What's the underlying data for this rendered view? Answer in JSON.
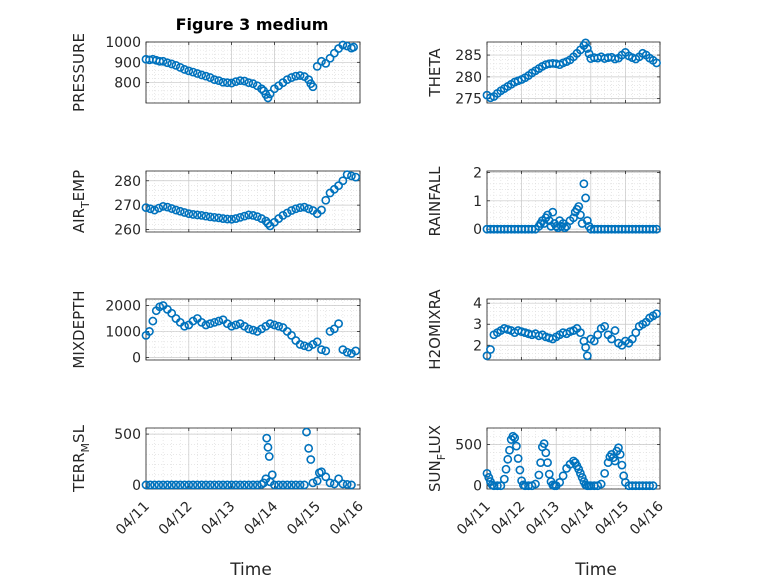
{
  "figure_title": "Figure 3 medium",
  "marker_color": "#0072bd",
  "chart_data": [
    {
      "type": "scatter",
      "ylabel": "PRESSURE",
      "xlim": [
        0,
        5
      ],
      "ylim": [
        700,
        1000
      ],
      "yticks": [
        800,
        900,
        1000
      ],
      "ytick_labels": [
        "800",
        "900",
        "1000"
      ],
      "x": [
        0,
        0.08,
        0.16,
        0.24,
        0.32,
        0.4,
        0.5,
        0.6,
        0.7,
        0.8,
        0.9,
        1.0,
        1.1,
        1.2,
        1.3,
        1.4,
        1.5,
        1.6,
        1.7,
        1.8,
        1.9,
        2.0,
        2.1,
        2.2,
        2.3,
        2.4,
        2.5,
        2.6,
        2.7,
        2.75,
        2.8,
        2.85,
        2.9,
        3.0,
        3.1,
        3.2,
        3.3,
        3.4,
        3.5,
        3.6,
        3.7,
        3.8,
        3.85,
        3.9,
        4.0,
        4.1,
        4.2,
        4.3,
        4.4,
        4.5,
        4.6,
        4.7,
        4.8,
        4.85
      ],
      "y": [
        915,
        912,
        915,
        910,
        905,
        905,
        898,
        892,
        885,
        875,
        865,
        858,
        852,
        845,
        838,
        832,
        825,
        815,
        810,
        802,
        800,
        798,
        805,
        810,
        808,
        800,
        795,
        785,
        770,
        760,
        742,
        725,
        745,
        770,
        785,
        800,
        815,
        825,
        832,
        835,
        830,
        815,
        795,
        780,
        880,
        905,
        895,
        920,
        945,
        968,
        985,
        980,
        970,
        975
      ]
    },
    {
      "type": "scatter",
      "ylabel": "THETA",
      "xlim": [
        0,
        5
      ],
      "ylim": [
        274,
        288
      ],
      "yticks": [
        275,
        280,
        285
      ],
      "ytick_labels": [
        "275",
        "280",
        "285"
      ],
      "x": [
        0,
        0.1,
        0.2,
        0.3,
        0.4,
        0.5,
        0.6,
        0.7,
        0.8,
        0.9,
        1.0,
        1.1,
        1.2,
        1.3,
        1.4,
        1.5,
        1.6,
        1.7,
        1.8,
        1.9,
        2.0,
        2.1,
        2.2,
        2.3,
        2.4,
        2.5,
        2.6,
        2.7,
        2.8,
        2.85,
        2.9,
        2.95,
        3.0,
        3.1,
        3.2,
        3.3,
        3.4,
        3.5,
        3.6,
        3.7,
        3.8,
        3.9,
        4.0,
        4.1,
        4.2,
        4.3,
        4.4,
        4.5,
        4.6,
        4.7,
        4.8,
        4.9
      ],
      "y": [
        275.8,
        275.2,
        275.5,
        276.2,
        276.8,
        277.3,
        277.8,
        278.3,
        278.8,
        279.1,
        279.4,
        279.8,
        280.3,
        280.9,
        281.4,
        281.9,
        282.4,
        282.8,
        283.0,
        283.1,
        283.0,
        282.8,
        283.2,
        283.5,
        283.9,
        284.6,
        285.4,
        286.2,
        287.2,
        287.8,
        286.5,
        285.3,
        284.2,
        284.4,
        284.3,
        284.6,
        284.2,
        284.4,
        284.5,
        284.1,
        284.3,
        285.0,
        285.6,
        284.8,
        284.4,
        284.1,
        284.6,
        285.4,
        285.0,
        284.3,
        283.8,
        283.2
      ]
    },
    {
      "type": "scatter",
      "ylabel": "AIR_TEMP",
      "xlim": [
        0,
        5
      ],
      "ylim": [
        259,
        284
      ],
      "yticks": [
        260,
        270,
        280
      ],
      "ytick_labels": [
        "260",
        "270",
        "280"
      ],
      "x": [
        0,
        0.1,
        0.2,
        0.3,
        0.4,
        0.5,
        0.6,
        0.7,
        0.8,
        0.9,
        1.0,
        1.1,
        1.2,
        1.3,
        1.4,
        1.5,
        1.6,
        1.7,
        1.8,
        1.9,
        2.0,
        2.1,
        2.2,
        2.3,
        2.4,
        2.5,
        2.6,
        2.7,
        2.8,
        2.85,
        2.9,
        3.0,
        3.1,
        3.2,
        3.3,
        3.4,
        3.5,
        3.6,
        3.7,
        3.8,
        3.9,
        4.0,
        4.1,
        4.2,
        4.3,
        4.4,
        4.5,
        4.6,
        4.7,
        4.8,
        4.9
      ],
      "y": [
        269,
        268.5,
        268,
        268.8,
        269.5,
        269.2,
        268.6,
        268,
        267.5,
        267,
        266.5,
        266.2,
        266,
        265.8,
        265.5,
        265.2,
        265,
        264.8,
        264.5,
        264.3,
        264.2,
        264.5,
        265,
        265.5,
        266,
        265.8,
        265.3,
        264.5,
        263.5,
        262.5,
        261.5,
        263,
        264.5,
        265.8,
        266.8,
        267.8,
        268.5,
        269,
        269.2,
        268.5,
        267.8,
        266.5,
        268,
        272,
        275,
        276.5,
        278,
        280,
        282.5,
        282,
        281.5
      ]
    },
    {
      "type": "scatter",
      "ylabel": "MIXDEPTH",
      "xlim": [
        0,
        5
      ],
      "ylim": [
        -100,
        2250
      ],
      "yticks": [
        0,
        1000,
        2000
      ],
      "ytick_labels": [
        "0",
        "1000",
        "2000"
      ],
      "x": [
        0,
        0.08,
        0.16,
        0.24,
        0.32,
        0.4,
        0.5,
        0.6,
        0.7,
        0.8,
        0.9,
        1.0,
        1.1,
        1.2,
        1.3,
        1.4,
        1.5,
        1.6,
        1.7,
        1.8,
        1.9,
        2.0,
        2.1,
        2.2,
        2.3,
        2.4,
        2.5,
        2.6,
        2.7,
        2.8,
        2.9,
        3.0,
        3.1,
        3.2,
        3.3,
        3.4,
        3.5,
        3.6,
        3.7,
        3.8,
        3.9,
        4.0,
        4.1,
        4.2,
        4.3,
        4.4,
        4.5,
        4.6,
        4.7,
        4.8,
        4.9
      ],
      "y": [
        850,
        1000,
        1400,
        1800,
        1950,
        2000,
        1850,
        1700,
        1500,
        1350,
        1200,
        1250,
        1400,
        1500,
        1350,
        1250,
        1300,
        1350,
        1400,
        1450,
        1300,
        1200,
        1250,
        1300,
        1200,
        1100,
        1050,
        1000,
        1100,
        1200,
        1300,
        1250,
        1200,
        1150,
        1000,
        850,
        650,
        500,
        450,
        400,
        500,
        600,
        300,
        250,
        1000,
        1100,
        1300,
        300,
        200,
        150,
        250
      ]
    },
    {
      "type": "scatter",
      "ylabel": "H2OMIXRA",
      "xlim": [
        0,
        5
      ],
      "ylim": [
        1.3,
        4.2
      ],
      "yticks": [
        2,
        3,
        4
      ],
      "ytick_labels": [
        "2",
        "3",
        "4"
      ],
      "x": [
        0,
        0.1,
        0.2,
        0.3,
        0.4,
        0.5,
        0.6,
        0.7,
        0.8,
        0.9,
        1.0,
        1.1,
        1.2,
        1.3,
        1.4,
        1.5,
        1.6,
        1.7,
        1.8,
        1.9,
        2.0,
        2.1,
        2.2,
        2.3,
        2.4,
        2.5,
        2.6,
        2.7,
        2.8,
        2.85,
        2.9,
        3.0,
        3.1,
        3.2,
        3.3,
        3.4,
        3.5,
        3.6,
        3.7,
        3.8,
        3.9,
        4.0,
        4.1,
        4.2,
        4.3,
        4.4,
        4.5,
        4.6,
        4.7,
        4.8,
        4.9
      ],
      "y": [
        1.5,
        1.8,
        2.5,
        2.6,
        2.7,
        2.8,
        2.75,
        2.7,
        2.6,
        2.7,
        2.65,
        2.6,
        2.55,
        2.5,
        2.55,
        2.45,
        2.5,
        2.4,
        2.35,
        2.3,
        2.4,
        2.5,
        2.6,
        2.55,
        2.65,
        2.7,
        2.8,
        2.6,
        2.2,
        1.9,
        1.5,
        2.3,
        2.2,
        2.5,
        2.8,
        2.9,
        2.5,
        2.3,
        2.7,
        2.1,
        2.0,
        2.2,
        2.1,
        2.3,
        2.6,
        2.9,
        3.0,
        3.1,
        3.3,
        3.4,
        3.5
      ]
    },
    {
      "type": "scatter",
      "ylabel": "RAINFALL",
      "xlim": [
        0,
        5
      ],
      "ylim": [
        -0.1,
        2.05
      ],
      "yticks": [
        0,
        1,
        2
      ],
      "ytick_labels": [
        "0",
        "1",
        "2"
      ],
      "x": [
        0,
        0.1,
        0.2,
        0.3,
        0.4,
        0.5,
        0.6,
        0.7,
        0.8,
        0.9,
        1.0,
        1.1,
        1.2,
        1.3,
        1.4,
        1.5,
        1.55,
        1.6,
        1.65,
        1.7,
        1.75,
        1.8,
        1.85,
        1.9,
        1.95,
        2.0,
        2.05,
        2.1,
        2.15,
        2.2,
        2.25,
        2.3,
        2.4,
        2.5,
        2.55,
        2.6,
        2.65,
        2.7,
        2.75,
        2.8,
        2.85,
        2.9,
        2.95,
        3.0,
        3.1,
        3.2,
        3.3,
        3.4,
        3.5,
        3.6,
        3.7,
        3.8,
        3.9,
        4.0,
        4.1,
        4.2,
        4.3,
        4.4,
        4.5,
        4.6,
        4.7,
        4.8,
        4.9
      ],
      "y": [
        0,
        0,
        0,
        0,
        0,
        0,
        0,
        0,
        0,
        0,
        0,
        0,
        0,
        0,
        0,
        0.1,
        0.2,
        0.3,
        0.2,
        0.4,
        0.5,
        0.3,
        0.1,
        0.6,
        0.2,
        0.1,
        0.05,
        0.3,
        0.1,
        0.2,
        0.05,
        0.1,
        0.3,
        0.4,
        0.6,
        0.7,
        0.8,
        0.5,
        0.2,
        1.6,
        1.1,
        0.3,
        0.1,
        0,
        0,
        0,
        0,
        0,
        0,
        0,
        0,
        0,
        0,
        0,
        0,
        0,
        0,
        0,
        0,
        0,
        0,
        0,
        0
      ]
    },
    {
      "type": "scatter",
      "ylabel": "TERR_MSL",
      "xlim": [
        0,
        5
      ],
      "ylim": [
        -40,
        560
      ],
      "yticks": [
        0,
        500
      ],
      "ytick_labels": [
        "0",
        "500"
      ],
      "x": [
        0,
        0.1,
        0.2,
        0.3,
        0.4,
        0.5,
        0.6,
        0.7,
        0.8,
        0.9,
        1.0,
        1.1,
        1.2,
        1.3,
        1.4,
        1.5,
        1.6,
        1.7,
        1.8,
        1.9,
        2.0,
        2.1,
        2.2,
        2.3,
        2.4,
        2.5,
        2.6,
        2.7,
        2.75,
        2.8,
        2.82,
        2.85,
        2.88,
        2.9,
        2.95,
        3.0,
        3.1,
        3.2,
        3.3,
        3.4,
        3.5,
        3.6,
        3.7,
        3.75,
        3.8,
        3.85,
        3.9,
        4.0,
        4.05,
        4.1,
        4.2,
        4.3,
        4.4,
        4.5,
        4.6,
        4.7,
        4.8
      ],
      "y": [
        0,
        0,
        0,
        0,
        0,
        0,
        0,
        0,
        0,
        0,
        0,
        0,
        0,
        0,
        0,
        0,
        0,
        0,
        0,
        0,
        0,
        0,
        0,
        0,
        0,
        0,
        0,
        5,
        20,
        60,
        460,
        370,
        280,
        30,
        100,
        0,
        0,
        0,
        0,
        0,
        0,
        0,
        0,
        520,
        360,
        250,
        20,
        40,
        120,
        130,
        80,
        20,
        10,
        60,
        10,
        5,
        0
      ]
    },
    {
      "type": "scatter",
      "ylabel": "SUN_FLUX",
      "xlim": [
        0,
        5
      ],
      "ylim": [
        -40,
        700
      ],
      "yticks": [
        0,
        500
      ],
      "ytick_labels": [
        "0",
        "500"
      ],
      "x": [
        0,
        0.05,
        0.1,
        0.15,
        0.2,
        0.3,
        0.4,
        0.5,
        0.55,
        0.6,
        0.65,
        0.7,
        0.75,
        0.8,
        0.85,
        0.9,
        0.95,
        1.0,
        1.05,
        1.1,
        1.2,
        1.3,
        1.4,
        1.5,
        1.55,
        1.6,
        1.65,
        1.7,
        1.75,
        1.8,
        1.85,
        1.9,
        1.95,
        2.0,
        2.1,
        2.2,
        2.3,
        2.4,
        2.5,
        2.55,
        2.6,
        2.65,
        2.7,
        2.75,
        2.8,
        2.85,
        2.9,
        2.95,
        3.0,
        3.1,
        3.2,
        3.3,
        3.4,
        3.5,
        3.55,
        3.6,
        3.65,
        3.7,
        3.75,
        3.8,
        3.85,
        3.9,
        3.95,
        4.0,
        4.1,
        4.2,
        4.3,
        4.4,
        4.5,
        4.6,
        4.7,
        4.8
      ],
      "y": [
        150,
        100,
        50,
        10,
        0,
        0,
        0,
        80,
        200,
        320,
        430,
        560,
        600,
        580,
        480,
        330,
        190,
        60,
        10,
        0,
        0,
        0,
        20,
        130,
        280,
        470,
        510,
        400,
        280,
        140,
        50,
        10,
        0,
        0,
        40,
        120,
        210,
        260,
        300,
        280,
        240,
        200,
        150,
        100,
        50,
        10,
        0,
        0,
        0,
        0,
        0,
        20,
        150,
        280,
        350,
        380,
        340,
        300,
        420,
        460,
        380,
        250,
        120,
        40,
        0,
        0,
        0,
        0,
        0,
        0,
        0,
        0
      ]
    }
  ],
  "x_tick_labels": [
    "04/11",
    "04/12",
    "04/13",
    "04/14",
    "04/15",
    "04/16"
  ],
  "xlabel": "Time"
}
